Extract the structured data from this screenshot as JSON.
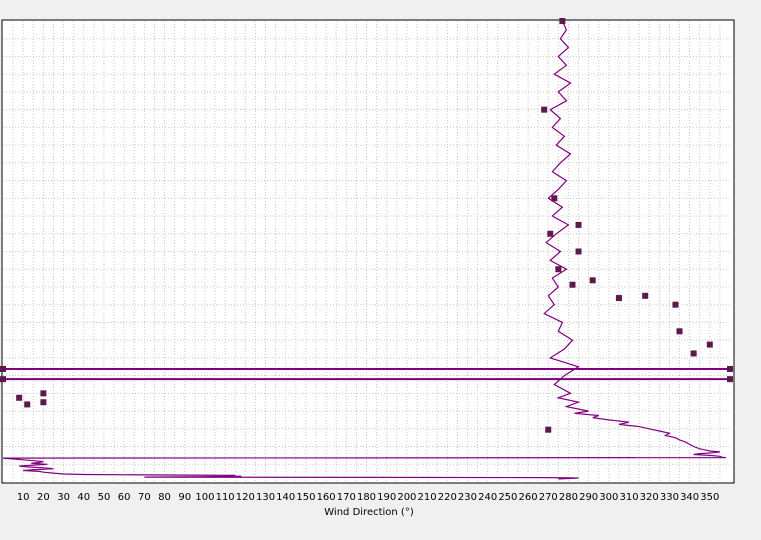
{
  "chart_data": {
    "type": "line",
    "xlabel": "Wind Direction (°)",
    "ylabel": "",
    "title": "",
    "xlim": [
      0,
      360
    ],
    "x_ticks": [
      10,
      20,
      30,
      40,
      50,
      60,
      70,
      80,
      90,
      100,
      110,
      120,
      130,
      140,
      150,
      160,
      170,
      180,
      190,
      200,
      210,
      220,
      230,
      240,
      250,
      260,
      270,
      280,
      290,
      300,
      310,
      320,
      330,
      340,
      350
    ],
    "grid": true,
    "series": [
      {
        "name": "",
        "color": "#800080",
        "marker_color": "#5a1a4a",
        "x": [
          277,
          279,
          276,
          280,
          275,
          279,
          273,
          281,
          275,
          279,
          271,
          276,
          272,
          278,
          274,
          281,
          276,
          272,
          279,
          275,
          270,
          277,
          272,
          280,
          274,
          269,
          276,
          271,
          279,
          272,
          275,
          270,
          273,
          268,
          277,
          275,
          282,
          278,
          271,
          285,
          278,
          273,
          281,
          275,
          285,
          279,
          290,
          283,
          295,
          292,
          300,
          310,
          305,
          315,
          320,
          325,
          330,
          328,
          333,
          335,
          338,
          340,
          342,
          345,
          348,
          350,
          355,
          352,
          345,
          342,
          350,
          355,
          356,
          358,
          0,
          2,
          5,
          10,
          15,
          20,
          18,
          14,
          22,
          15,
          8,
          12,
          20,
          25,
          16,
          10,
          18,
          20,
          25,
          30,
          40,
          70,
          115,
          108,
          118,
          100,
          70,
          270,
          285,
          280,
          275
        ],
        "y": [
          1040,
          1020,
          1000,
          980,
          960,
          940,
          920,
          900,
          880,
          860,
          840,
          820,
          800,
          780,
          760,
          740,
          720,
          700,
          680,
          660,
          640,
          620,
          600,
          580,
          560,
          540,
          520,
          500,
          480,
          460,
          440,
          420,
          400,
          380,
          360,
          340,
          320,
          300,
          280,
          260,
          240,
          220,
          200,
          190,
          180,
          170,
          160,
          155,
          150,
          145,
          140,
          135,
          130,
          125,
          120,
          115,
          110,
          105,
          100,
          95,
          90,
          85,
          80,
          75,
          72,
          70,
          68,
          66,
          64,
          62,
          60,
          58,
          56,
          55,
          54,
          53,
          52,
          50,
          48,
          46,
          44,
          42,
          40,
          38,
          36,
          34,
          32,
          30,
          28,
          26,
          24,
          22,
          20,
          18,
          17,
          16,
          15,
          14,
          13,
          12,
          11,
          10,
          9,
          8,
          7
        ],
        "markers": [
          {
            "x": 277,
            "y": 1040
          },
          {
            "x": 268,
            "y": 840
          },
          {
            "x": 273,
            "y": 640
          },
          {
            "x": 285,
            "y": 580
          },
          {
            "x": 271,
            "y": 560
          },
          {
            "x": 285,
            "y": 520
          },
          {
            "x": 275,
            "y": 480
          },
          {
            "x": 292,
            "y": 455
          },
          {
            "x": 282,
            "y": 445
          },
          {
            "x": 318,
            "y": 420
          },
          {
            "x": 305,
            "y": 415
          },
          {
            "x": 333,
            "y": 400
          },
          {
            "x": 335,
            "y": 340
          },
          {
            "x": 350,
            "y": 310
          },
          {
            "x": 342,
            "y": 290
          },
          {
            "x": 0,
            "y": 255
          },
          {
            "x": 360,
            "y": 255
          },
          {
            "x": 0,
            "y": 232
          },
          {
            "x": 360,
            "y": 232
          },
          {
            "x": 20,
            "y": 200
          },
          {
            "x": 8,
            "y": 190
          },
          {
            "x": 20,
            "y": 180
          },
          {
            "x": 12,
            "y": 175
          },
          {
            "x": 270,
            "y": 118
          }
        ]
      }
    ]
  }
}
